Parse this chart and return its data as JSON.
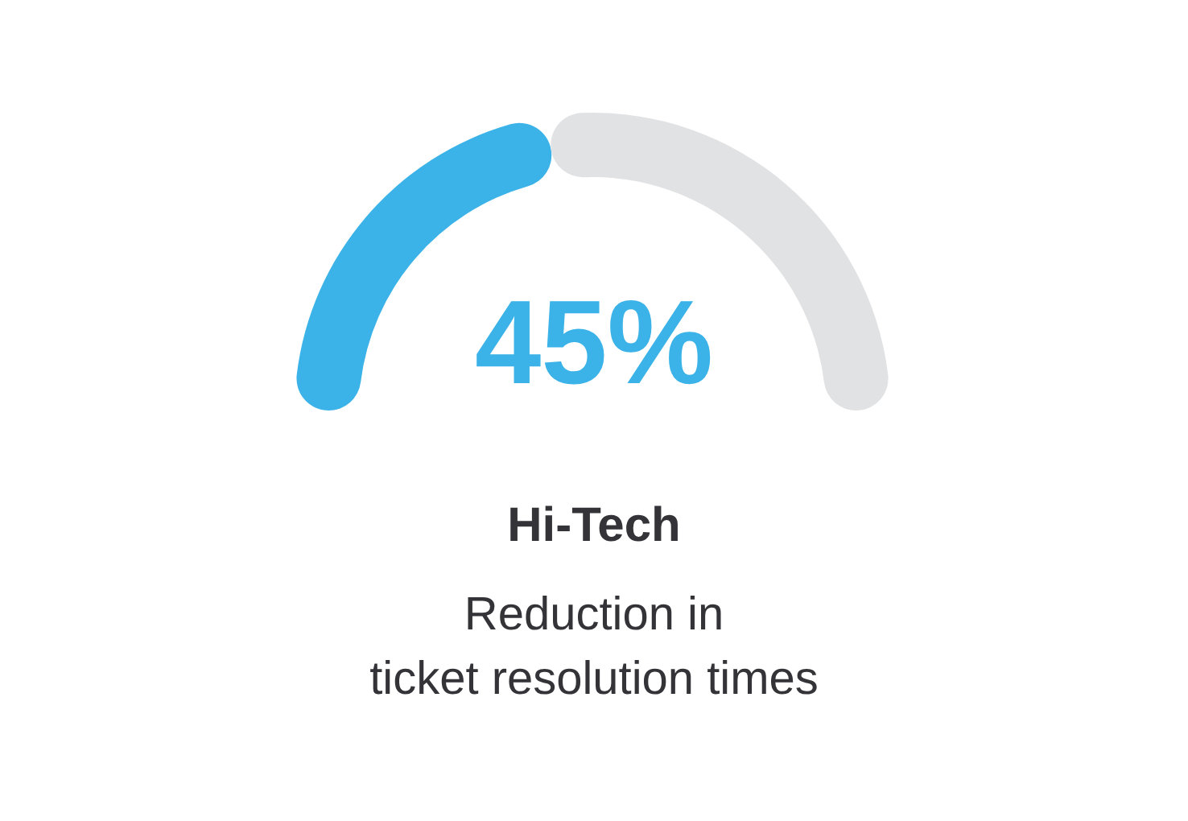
{
  "chart_data": {
    "type": "donut",
    "title": "Hi-Tech",
    "subtitle": "Reduction in\nticket resolution times",
    "categories": [
      null,
      null
    ],
    "values": [
      45,
      55
    ],
    "colors": [
      "#3bb3e8",
      "#e1e2e4"
    ],
    "value_labels": [
      "45%",
      null
    ]
  }
}
